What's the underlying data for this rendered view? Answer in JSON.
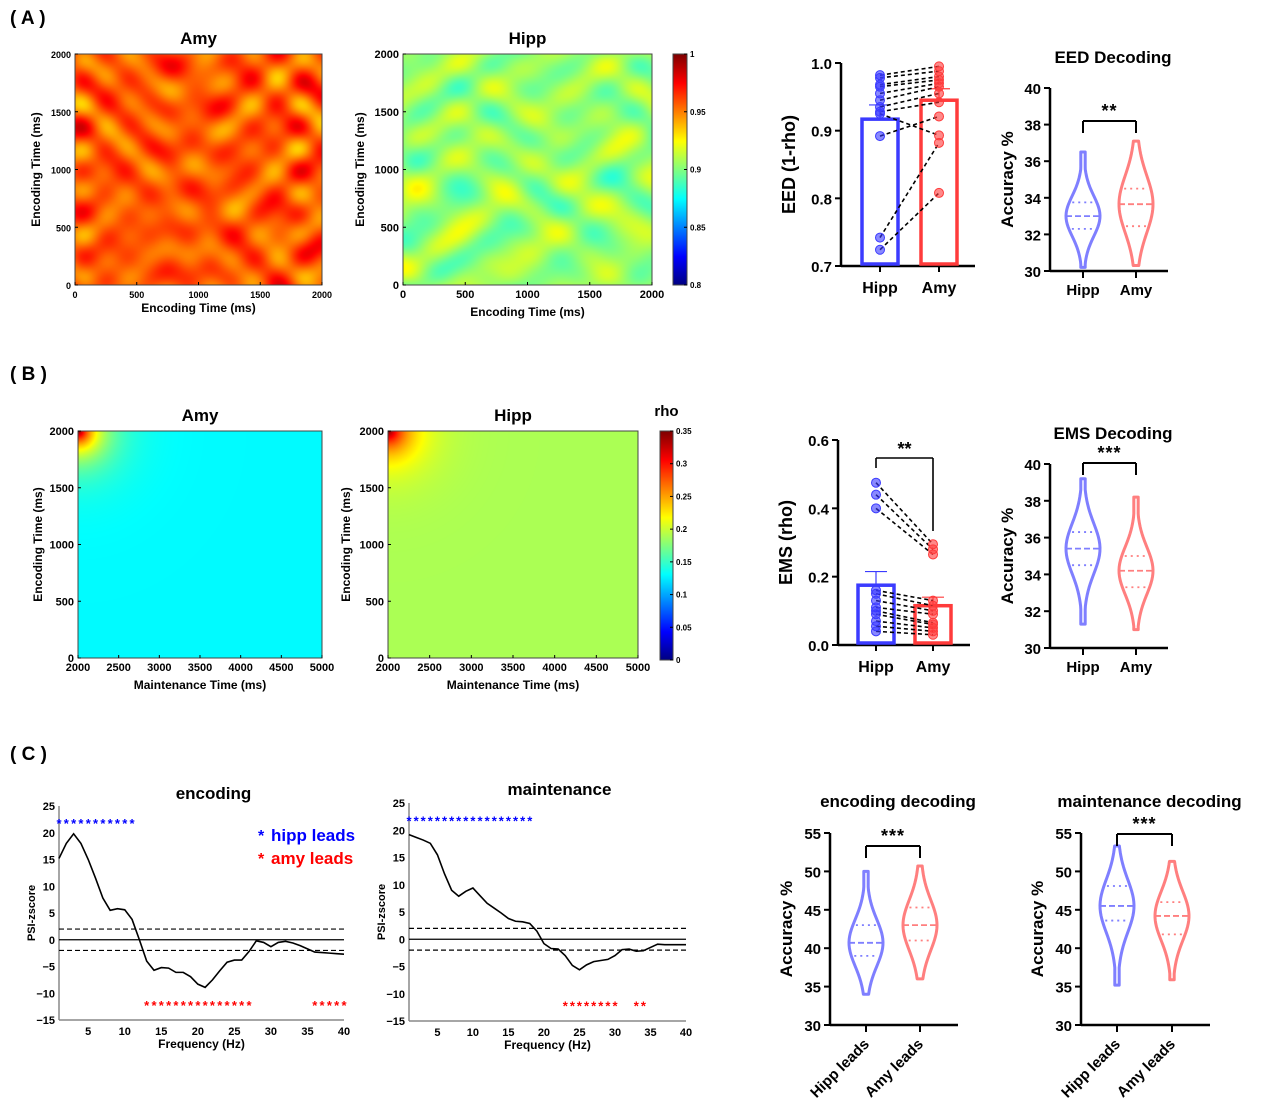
{
  "panel_labels": [
    "( A )",
    "( B )",
    "( C )"
  ],
  "colors": {
    "hipp": "#3b3bff",
    "amy": "#ff3b3b",
    "hipp_violin": "#7f7fff",
    "amy_violin": "#ff7f7f",
    "sig_hipp": "#0000ff",
    "sig_amy": "#ff0000"
  },
  "chart_data": [
    {
      "type": "heatmap",
      "title": "Amy",
      "xlabel": "Encoding Time (ms)",
      "ylabel": "Encoding Time (ms)",
      "xlim": [
        0,
        2000
      ],
      "ylim": [
        0,
        2000
      ],
      "xticks": [
        0,
        500,
        1000,
        1500,
        2000
      ],
      "yticks": [
        0,
        500,
        1000,
        1500,
        2000
      ],
      "colormap": "jet",
      "clim": [
        0.8,
        1
      ],
      "value_range": [
        0.93,
        0.985
      ]
    },
    {
      "type": "heatmap",
      "title": "Hipp",
      "xlabel": "Encoding Time (ms)",
      "ylabel": "Encoding Time (ms)",
      "xlim": [
        0,
        2000
      ],
      "ylim": [
        0,
        2000
      ],
      "xticks": [
        0,
        500,
        1000,
        1500,
        2000
      ],
      "yticks": [
        0,
        500,
        1000,
        1500,
        2000
      ],
      "colormap": "jet",
      "clim": [
        0.8,
        1
      ],
      "value_range": [
        0.88,
        0.93
      ],
      "colorbar": {
        "label": "",
        "ticks": [
          "1",
          "0.95",
          "0.9",
          "0.85",
          "0.8"
        ]
      }
    },
    {
      "type": "bar",
      "ylabel": "EED (1-rho)",
      "categories": [
        "Hipp",
        "Amy"
      ],
      "ylim": [
        0.7,
        1.0
      ],
      "yticks": [
        "0.7",
        "0.8",
        "0.9",
        "1.0"
      ],
      "means": [
        0.917,
        0.945
      ],
      "sem_upper": [
        0.938,
        0.962
      ],
      "pairs": [
        [
          0.982,
          0.995
        ],
        [
          0.978,
          0.988
        ],
        [
          0.968,
          0.98
        ],
        [
          0.965,
          0.975
        ],
        [
          0.955,
          0.97
        ],
        [
          0.945,
          0.965
        ],
        [
          0.935,
          0.955
        ],
        [
          0.928,
          0.942
        ],
        [
          0.925,
          0.893
        ],
        [
          0.892,
          0.921
        ],
        [
          0.742,
          0.882
        ],
        [
          0.724,
          0.808
        ]
      ]
    },
    {
      "type": "violin",
      "title": "EED Decoding",
      "ylabel": "Accuracy %",
      "categories": [
        "Hipp",
        "Amy"
      ],
      "ylim": [
        30,
        40
      ],
      "yticks": [
        30,
        32,
        34,
        36,
        38,
        40
      ],
      "significance": "**",
      "series": [
        {
          "min": 30.2,
          "q1": 32.3,
          "median": 33.0,
          "q3": 33.75,
          "max": 36.5
        },
        {
          "min": 30.3,
          "q1": 32.45,
          "median": 33.65,
          "q3": 34.5,
          "max": 37.1
        }
      ]
    },
    {
      "type": "heatmap",
      "title": "Amy",
      "xlabel": "Maintenance Time (ms)",
      "ylabel": "Encoding Time (ms)",
      "xlim": [
        2000,
        5000
      ],
      "ylim": [
        0,
        2000
      ],
      "xticks": [
        2000,
        2500,
        3000,
        3500,
        4000,
        4500,
        5000
      ],
      "yticks": [
        0,
        500,
        1000,
        1500,
        2000
      ],
      "colormap": "jet",
      "clim": [
        0,
        0.35
      ],
      "value_range": [
        0.085,
        0.13
      ],
      "corner_peak": 0.35
    },
    {
      "type": "heatmap",
      "title": "Hipp",
      "xlabel": "Maintenance Time (ms)",
      "ylabel": "Encoding Time (ms)",
      "xlim": [
        2000,
        5000
      ],
      "ylim": [
        0,
        2000
      ],
      "xticks": [
        2000,
        2500,
        3000,
        3500,
        4000,
        4500,
        5000
      ],
      "yticks": [
        0,
        500,
        1000,
        1500,
        2000
      ],
      "colormap": "jet",
      "clim": [
        0,
        0.35
      ],
      "value_range": [
        0.155,
        0.19
      ],
      "corner_peak": 0.35,
      "colorbar": {
        "label": "rho",
        "ticks": [
          "0.35",
          "0.3",
          "0.25",
          "0.2",
          "0.15",
          "0.1",
          "0.05",
          "0"
        ]
      }
    },
    {
      "type": "bar",
      "ylabel": "EMS (rho)",
      "categories": [
        "Hipp",
        "Amy"
      ],
      "ylim": [
        0,
        0.6
      ],
      "yticks": [
        "0.0",
        "0.2",
        "0.4",
        "0.6"
      ],
      "significance": "**",
      "means": [
        0.175,
        0.115
      ],
      "sem_upper": [
        0.215,
        0.14
      ],
      "pairs": [
        [
          0.475,
          0.295
        ],
        [
          0.44,
          0.28
        ],
        [
          0.4,
          0.265
        ],
        [
          0.16,
          0.13
        ],
        [
          0.15,
          0.115
        ],
        [
          0.13,
          0.1
        ],
        [
          0.11,
          0.09
        ],
        [
          0.1,
          0.065
        ],
        [
          0.09,
          0.06
        ],
        [
          0.07,
          0.05
        ],
        [
          0.055,
          0.04
        ],
        [
          0.04,
          0.03
        ]
      ]
    },
    {
      "type": "violin",
      "title": "EMS Decoding",
      "ylabel": "Accuracy %",
      "categories": [
        "Hipp",
        "Amy"
      ],
      "ylim": [
        30,
        40
      ],
      "yticks": [
        30,
        32,
        34,
        36,
        38,
        40
      ],
      "significance": "***",
      "series": [
        {
          "min": 31.3,
          "q1": 34.5,
          "median": 35.4,
          "q3": 36.3,
          "max": 39.2
        },
        {
          "min": 31.0,
          "q1": 33.3,
          "median": 34.2,
          "q3": 35.0,
          "max": 38.2
        }
      ]
    },
    {
      "type": "line",
      "title": "encoding",
      "xlabel": "Frequency (Hz)",
      "ylabel": "PSI-zscore",
      "xlim": [
        1,
        40
      ],
      "ylim": [
        -15,
        25
      ],
      "xticks": [
        5,
        10,
        15,
        20,
        25,
        30,
        35,
        40
      ],
      "yticks": [
        -15,
        -10,
        -5,
        0,
        5,
        10,
        15,
        20,
        25
      ],
      "thresholds": [
        -2,
        2
      ],
      "x": [
        1,
        2,
        3,
        4,
        5,
        6,
        7,
        8,
        9,
        10,
        11,
        12,
        13,
        14,
        15,
        16,
        17,
        18,
        19,
        20,
        21,
        22,
        23,
        24,
        25,
        26,
        27,
        28,
        29,
        30,
        31,
        32,
        33,
        34,
        35,
        36,
        37,
        38,
        39,
        40
      ],
      "y": [
        15.2,
        18,
        19.8,
        18,
        15,
        11.5,
        7.8,
        5.5,
        5.8,
        5.6,
        3.8,
        0,
        -4,
        -5.7,
        -5.2,
        -5.3,
        -6.1,
        -6.1,
        -6.9,
        -8.3,
        -8.9,
        -7.5,
        -5.8,
        -4.2,
        -3.8,
        -3.8,
        -2.2,
        -0.2,
        -0.5,
        -1.3,
        -0.5,
        -0.3,
        -0.6,
        -1.1,
        -1.7,
        -2.3,
        -2.4,
        -2.5,
        -2.6,
        -2.7
      ],
      "hipp_leads_freqs": [
        1,
        2,
        3,
        4,
        5,
        6,
        7,
        8,
        9,
        10,
        11
      ],
      "amy_leads_freqs": [
        13,
        14,
        15,
        16,
        17,
        18,
        19,
        20,
        21,
        22,
        23,
        24,
        25,
        26,
        27,
        36,
        37,
        38,
        39,
        40
      ],
      "legend": [
        {
          "marker": "*",
          "label": "hipp leads"
        },
        {
          "marker": "*",
          "label": "amy leads"
        }
      ]
    },
    {
      "type": "line",
      "title": "maintenance",
      "xlabel": "Frequency (Hz)",
      "ylabel": "PSI-zscore",
      "xlim": [
        1,
        40
      ],
      "ylim": [
        -15,
        25
      ],
      "xticks": [
        5,
        10,
        15,
        20,
        25,
        30,
        35,
        40
      ],
      "yticks": [
        -15,
        -10,
        -5,
        0,
        5,
        10,
        15,
        20,
        25
      ],
      "thresholds": [
        -2,
        2
      ],
      "x": [
        1,
        2,
        3,
        4,
        5,
        6,
        7,
        8,
        9,
        10,
        11,
        12,
        13,
        14,
        15,
        16,
        17,
        18,
        19,
        20,
        21,
        22,
        23,
        24,
        25,
        26,
        27,
        28,
        29,
        30,
        31,
        32,
        33,
        34,
        35,
        36,
        37,
        38,
        39,
        40
      ],
      "y": [
        19.2,
        18.7,
        18.2,
        17.6,
        15.5,
        12,
        9,
        7.9,
        8.8,
        9.4,
        8,
        6.6,
        5.7,
        4.8,
        3.8,
        3.3,
        3.2,
        2.9,
        1.5,
        -0.8,
        -1.7,
        -1.8,
        -3,
        -4.8,
        -5.6,
        -4.7,
        -4.1,
        -3.9,
        -3.7,
        -3,
        -1.9,
        -1.8,
        -2.2,
        -2.1,
        -1.5,
        -0.9,
        -1,
        -1,
        -1,
        -1
      ],
      "hipp_leads_freqs": [
        1,
        2,
        3,
        4,
        5,
        6,
        7,
        8,
        9,
        10,
        11,
        12,
        13,
        14,
        15,
        16,
        17,
        18
      ],
      "amy_leads_freqs": [
        23,
        24,
        25,
        26,
        27,
        28,
        29,
        30,
        33,
        34
      ]
    },
    {
      "type": "violin",
      "title": "encoding decoding",
      "ylabel": "Accuracy %",
      "categories": [
        "Hipp leads",
        "Amy leads"
      ],
      "ylim": [
        30,
        55
      ],
      "yticks": [
        30,
        35,
        40,
        45,
        50,
        55
      ],
      "significance": "***",
      "series": [
        {
          "min": 34.0,
          "q1": 39.0,
          "median": 40.7,
          "q3": 43.0,
          "max": 50.0
        },
        {
          "min": 36.0,
          "q1": 41.0,
          "median": 43.0,
          "q3": 45.3,
          "max": 50.7
        }
      ]
    },
    {
      "type": "violin",
      "title": "maintenance decoding",
      "ylabel": "Accuracy %",
      "categories": [
        "Hipp leads",
        "Amy leads"
      ],
      "ylim": [
        30,
        55
      ],
      "yticks": [
        30,
        35,
        40,
        45,
        50,
        55
      ],
      "significance": "***",
      "series": [
        {
          "min": 35.2,
          "q1": 43.6,
          "median": 45.5,
          "q3": 48.1,
          "max": 53.3
        },
        {
          "min": 35.9,
          "q1": 41.8,
          "median": 44.2,
          "q3": 46.0,
          "max": 51.3
        }
      ]
    }
  ]
}
